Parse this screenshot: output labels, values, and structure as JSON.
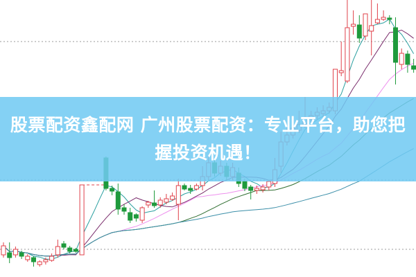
{
  "banner": {
    "title": "股票配资鑫配网 广州股票配资：专业平台，助您把握投资机遇！"
  },
  "chart_data": {
    "type": "candlestick",
    "title": "",
    "xlabel": "",
    "ylabel": "",
    "ylim": [
      0,
      400
    ],
    "grid": "dotted horizontal",
    "grid_levels": [
      340,
      140,
      40
    ],
    "colors": {
      "up": "#e0404a",
      "down": "#1f9a3c",
      "halt": "#e0404a"
    },
    "ohlc_order": [
      "open",
      "high",
      "low",
      "close"
    ],
    "candles": [
      [
        32,
        50,
        28,
        45
      ],
      [
        35,
        50,
        20,
        28
      ],
      [
        32,
        44,
        28,
        40
      ],
      [
        35,
        38,
        26,
        30
      ],
      [
        25,
        33,
        22,
        30
      ],
      [
        28,
        30,
        15,
        22
      ],
      [
        18,
        24,
        15,
        22
      ],
      [
        22,
        28,
        18,
        25
      ],
      [
        24,
        34,
        22,
        30
      ],
      [
        32,
        54,
        28,
        44
      ],
      [
        48,
        52,
        40,
        43
      ],
      [
        42,
        45,
        34,
        37
      ],
      [
        40,
        42,
        35,
        37
      ],
      [
        32,
        133,
        32,
        133
      ],
      null,
      null,
      null,
      [
        172,
        174,
        125,
        128
      ],
      [
        128,
        132,
        118,
        124
      ],
      [
        123,
        135,
        90,
        98
      ],
      [
        100,
        105,
        90,
        95
      ],
      [
        93,
        100,
        78,
        82
      ],
      [
        90,
        92,
        80,
        85
      ],
      [
        82,
        102,
        78,
        100
      ],
      [
        104,
        110,
        100,
        108
      ],
      [
        107,
        125,
        100,
        103
      ],
      [
        104,
        115,
        100,
        111
      ],
      [
        108,
        120,
        105,
        113
      ],
      [
        112,
        122,
        110,
        117
      ],
      [
        105,
        142,
        82,
        132
      ],
      [
        132,
        135,
        125,
        127
      ],
      [
        128,
        133,
        120,
        125
      ],
      [
        127,
        135,
        125,
        132
      ],
      [
        132,
        160,
        125,
        145
      ],
      [
        145,
        175,
        140,
        165
      ],
      [
        165,
        172,
        145,
        150
      ],
      [
        150,
        168,
        146,
        160
      ],
      [
        160,
        165,
        140,
        145
      ],
      [
        145,
        165,
        140,
        158
      ],
      [
        150,
        158,
        130,
        135
      ],
      [
        138,
        142,
        124,
        128
      ],
      [
        130,
        133,
        112,
        125
      ],
      [
        125,
        132,
        120,
        128
      ],
      [
        126,
        134,
        122,
        130
      ],
      [
        130,
        140,
        125,
        138
      ],
      [
        135,
        172,
        130,
        155
      ],
      [
        160,
        210,
        150,
        195
      ],
      [
        195,
        215,
        190,
        205
      ],
      [
        205,
        222,
        200,
        215
      ],
      [
        212,
        240,
        208,
        220
      ],
      [
        220,
        260,
        215,
        230
      ],
      [
        228,
        240,
        222,
        233
      ],
      [
        233,
        245,
        228,
        238
      ],
      [
        236,
        248,
        232,
        240
      ],
      [
        240,
        252,
        236,
        245
      ],
      [
        240,
        300,
        235,
        300
      ],
      [
        295,
        340,
        290,
        298
      ],
      [
        283,
        400,
        280,
        360
      ],
      [
        362,
        385,
        350,
        365
      ],
      [
        364,
        378,
        338,
        345
      ],
      [
        348,
        380,
        342,
        380
      ],
      [
        355,
        400,
        320,
        363
      ],
      [
        367,
        395,
        365,
        372
      ],
      [
        372,
        385,
        370,
        375
      ],
      [
        374,
        378,
        365,
        372
      ],
      [
        360,
        375,
        278,
        310
      ],
      [
        307,
        330,
        300,
        323
      ],
      [
        322,
        327,
        295,
        307
      ],
      [
        305,
        315,
        295,
        300
      ]
    ],
    "moving_averages": [
      {
        "period": 5,
        "color": "#2a9fa0"
      },
      {
        "period": 10,
        "color": "#7a2d6c"
      },
      {
        "period": 20,
        "color": "#ee90ee"
      },
      {
        "period": 30,
        "color": "#2f6e30"
      },
      {
        "period": 60,
        "color": "#3a8ea8"
      }
    ]
  }
}
